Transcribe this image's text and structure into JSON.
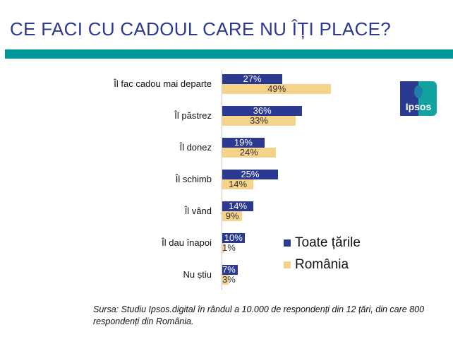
{
  "title": "CE FACI CU CADOUL CARE NU ÎȚI PLACE?",
  "chart_data": {
    "type": "bar",
    "orientation": "horizontal",
    "categories": [
      "Îl fac cadou mai departe",
      "Îl păstrez",
      "Îl donez",
      "Îl schimb",
      "Îl vând",
      "Îl dau înapoi",
      "Nu știu"
    ],
    "series": [
      {
        "name": "Toate țările",
        "color": "#2b3990",
        "values": [
          27,
          36,
          19,
          25,
          14,
          10,
          7
        ],
        "labels": [
          "27%",
          "36%",
          "19%",
          "25%",
          "14%",
          "10%",
          "7%"
        ]
      },
      {
        "name": "România",
        "color": "#f5d38a",
        "values": [
          49,
          33,
          24,
          14,
          9,
          1,
          3
        ],
        "labels": [
          "49%",
          "33%",
          "24%",
          "14%",
          "9%",
          "1%",
          "3%"
        ]
      }
    ],
    "unit": "%",
    "legend": "right"
  },
  "logo": "Ipsos",
  "source": "Sursa:  Studiu Ipsos.digital în rândul a 10.000 de respondenți din 12 țări, din care 800 respondenți din România."
}
